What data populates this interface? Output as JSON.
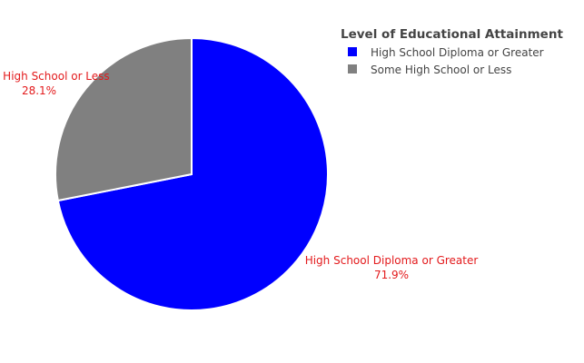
{
  "chart_data": {
    "type": "pie",
    "legend_title": "Level of Educational Attainment",
    "legend_position": "top-right",
    "slices": [
      {
        "label": "High School Diploma or Greater",
        "value": 71.9,
        "value_text": "71.9%",
        "color": "#0000ff"
      },
      {
        "label": "Some High School or Less",
        "value": 28.1,
        "value_text": "28.1%",
        "color": "#808080"
      }
    ],
    "label_color": "#e31a1c",
    "legend_text_color": "#444444"
  }
}
